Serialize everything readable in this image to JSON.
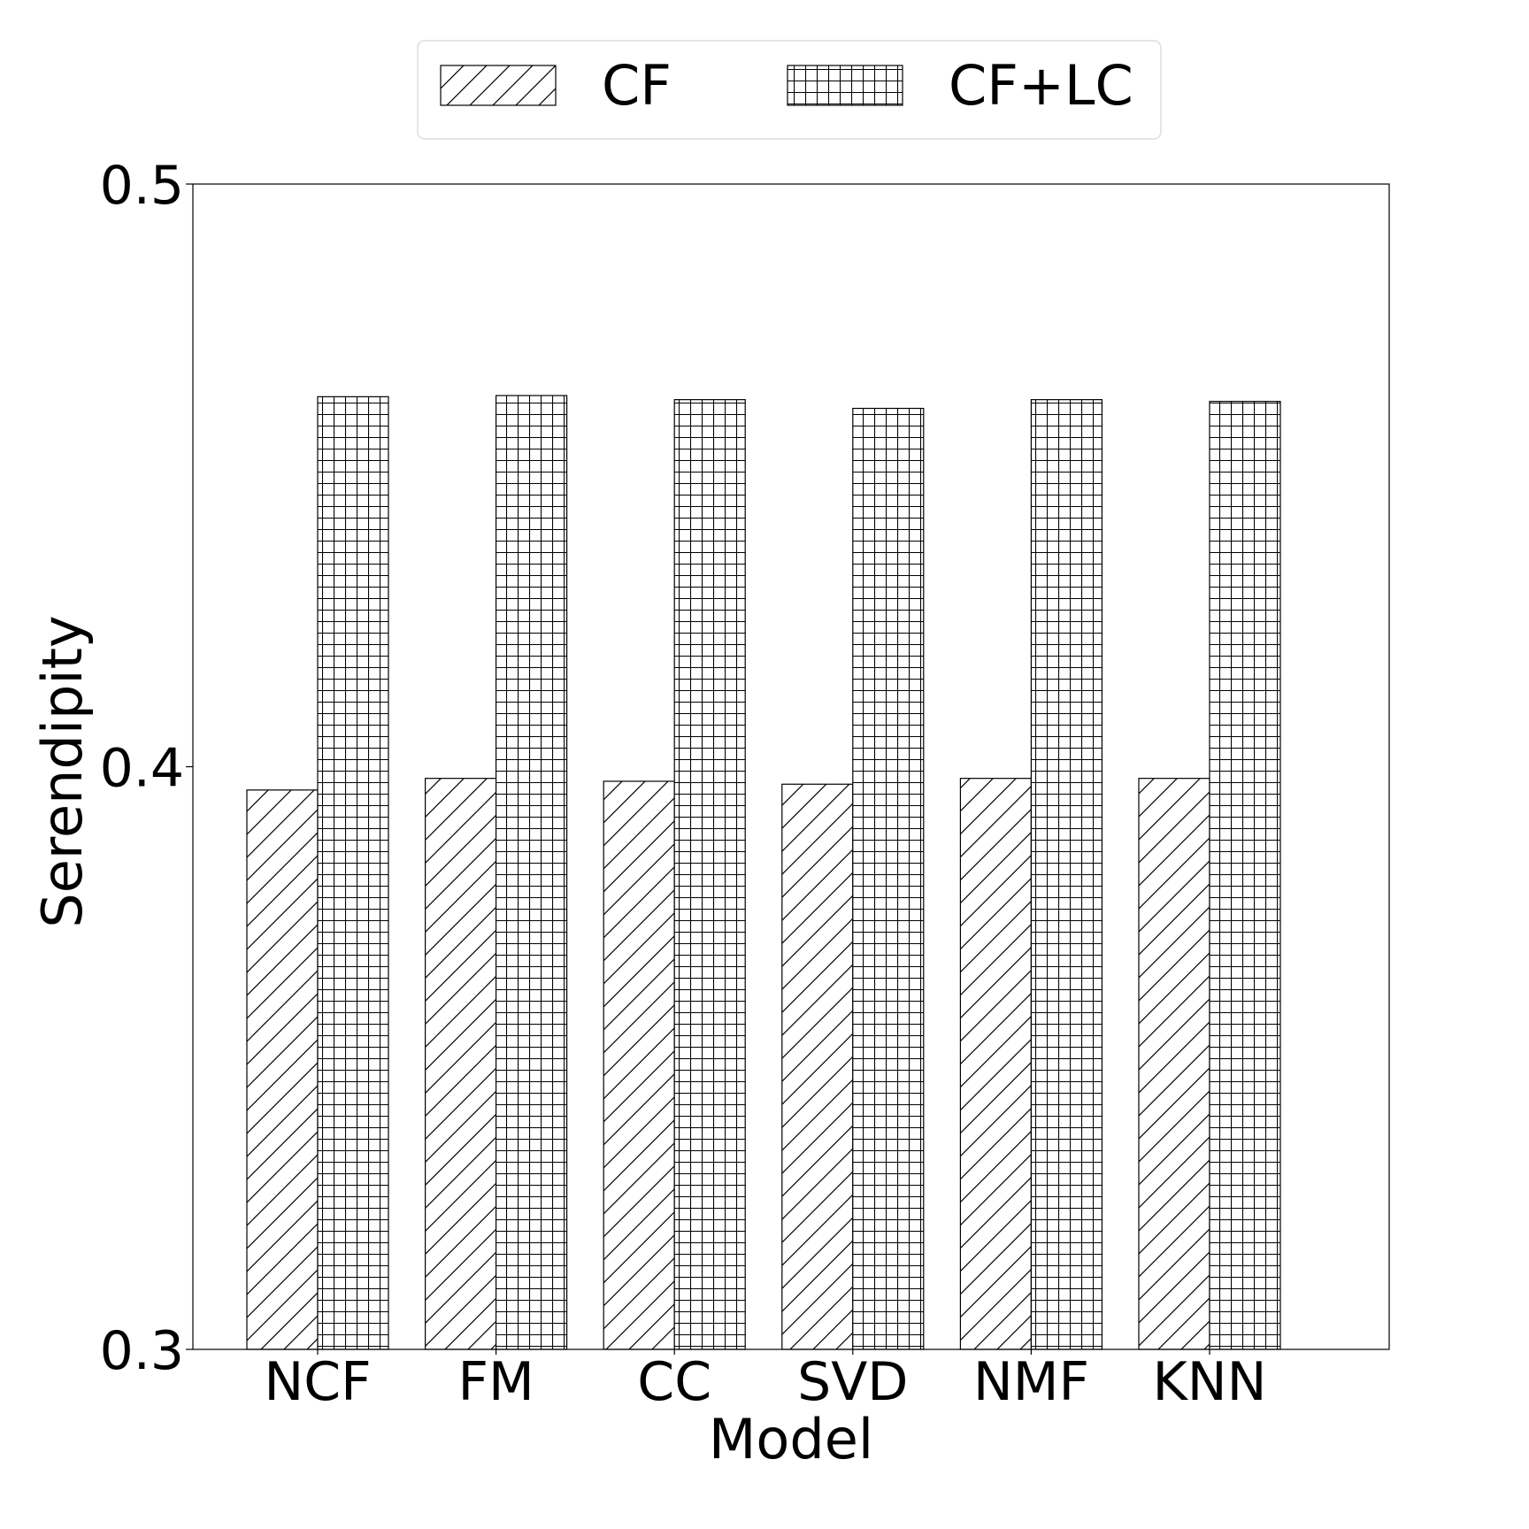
{
  "chart_data": {
    "type": "bar",
    "title": "",
    "xlabel": "Model",
    "ylabel": "Serendipity",
    "ylim": [
      0.3,
      0.5
    ],
    "yticks": [
      "0.3",
      "0.4",
      "0.5"
    ],
    "categories": [
      "NCF",
      "FM",
      "CC",
      "SVD",
      "NMF",
      "KNN"
    ],
    "series": [
      {
        "name": "CF",
        "hatch": "diagonal",
        "values": [
          0.396,
          0.398,
          0.3975,
          0.397,
          0.398,
          0.398
        ]
      },
      {
        "name": "CF+LC",
        "hatch": "grid",
        "values": [
          0.4635,
          0.4637,
          0.463,
          0.4615,
          0.463,
          0.4627
        ]
      }
    ],
    "legend": "top-center",
    "grid": false,
    "bar_edge_color": "#000000",
    "bar_fill_color": "#ffffff"
  }
}
